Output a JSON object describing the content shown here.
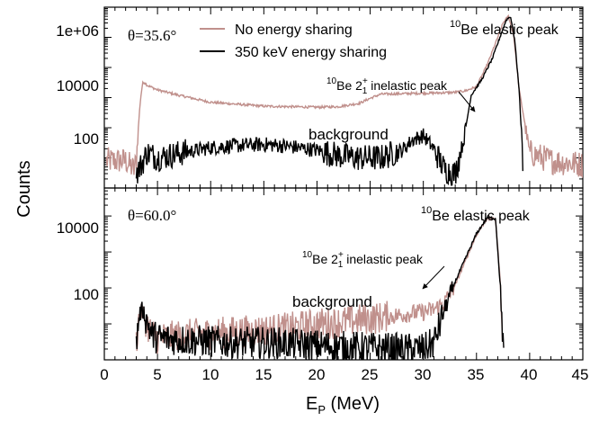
{
  "figure": {
    "ylabel": "Counts",
    "xlabel_main": "E",
    "xlabel_sub": "P",
    "xlabel_unit": " (MeV)"
  },
  "chart_data": [
    {
      "type": "line",
      "panel": "top",
      "angle_label": "θ=35.6°",
      "xlim": [
        0,
        45
      ],
      "ylim": [
        1,
        1000000
      ],
      "yscale": "log",
      "yticks": [
        100,
        10000,
        1000000
      ],
      "ytick_labels": [
        "100",
        "10000",
        "1e+06"
      ],
      "xticks": [
        0,
        5,
        10,
        15,
        20,
        25,
        30,
        35,
        40,
        45
      ],
      "xtick_labels": [],
      "legend": {
        "placement": "top-left",
        "entries": [
          "No energy sharing",
          "350 keV energy sharing"
        ]
      },
      "annotations": [
        {
          "text": "Be elastic peak",
          "super": "10",
          "x": 38.0
        },
        {
          "text": "Be 2",
          "super": "10",
          "state_sup": "+",
          "state_sub": "1",
          "tail": " inelastic peak",
          "x": 34.5
        },
        {
          "text": "background",
          "x": 23
        }
      ],
      "series": [
        {
          "name": "No energy sharing",
          "color": "#c0908c",
          "x": [
            0.2,
            2.0,
            2.8,
            3.0,
            3.2,
            3.4,
            3.6,
            3.8,
            4.0,
            5,
            7,
            10,
            15,
            20,
            22,
            24,
            25,
            26,
            28,
            30,
            32,
            33,
            34,
            35,
            36,
            37,
            37.5,
            38.0,
            38.5,
            39.0,
            40,
            42,
            45
          ],
          "y": [
            8,
            8,
            4,
            8,
            100,
            900,
            3000,
            3200,
            2600,
            1800,
            1200,
            700,
            520,
            480,
            500,
            650,
            950,
            1300,
            1350,
            1400,
            1450,
            1500,
            1700,
            2300,
            12000,
            100000,
            300000,
            500000,
            120000,
            2000,
            15,
            8,
            6
          ]
        },
        {
          "name": "350 keV energy sharing",
          "color": "#000000",
          "x": [
            3.0,
            3.5,
            4.0,
            5,
            7,
            10,
            12,
            15,
            17,
            20,
            22,
            24,
            26,
            28,
            29,
            30,
            31,
            32,
            33,
            33.8,
            34.5,
            35.5,
            36.5,
            37.2,
            37.8,
            38.2,
            38.6,
            39.0,
            39.4
          ],
          "y": [
            3,
            6,
            15,
            10,
            14,
            22,
            25,
            28,
            25,
            18,
            12,
            10,
            10,
            18,
            40,
            55,
            20,
            4,
            3,
            40,
            1200,
            4000,
            20000,
            100000,
            380000,
            500000,
            80000,
            2000,
            5
          ]
        }
      ]
    },
    {
      "type": "line",
      "panel": "bottom",
      "angle_label": "θ=60.0°",
      "xlim": [
        0,
        45
      ],
      "ylim": [
        1,
        60000
      ],
      "yscale": "log",
      "yticks": [
        100,
        10000
      ],
      "ytick_labels": [
        "100",
        "10000"
      ],
      "xticks": [
        0,
        5,
        10,
        15,
        20,
        25,
        30,
        35,
        40,
        45
      ],
      "xtick_labels": [
        "0",
        "5",
        "10",
        "15",
        "20",
        "25",
        "30",
        "35",
        "40",
        "45"
      ],
      "annotations": [
        {
          "text": "Be elastic peak",
          "super": "10",
          "x": 36
        },
        {
          "text": "Be 2",
          "super": "10",
          "state_sup": "+",
          "state_sub": "1",
          "tail": " inelastic peak",
          "x": 33
        },
        {
          "text": "background",
          "x": 23
        }
      ],
      "series": [
        {
          "name": "No energy sharing",
          "color": "#c0908c",
          "x": [
            3.0,
            3.3,
            3.6,
            4.0,
            4.5,
            5,
            8,
            12,
            16,
            18,
            20,
            22,
            24,
            26,
            28,
            29,
            30,
            31,
            32,
            33,
            34,
            35,
            36,
            36.8,
            37.2,
            37.6
          ],
          "y": [
            3,
            18,
            22,
            10,
            5,
            4,
            5,
            6,
            7,
            8,
            10,
            11,
            13,
            15,
            18,
            20,
            21,
            25,
            40,
            120,
            600,
            3000,
            8500,
            8000,
            200,
            1
          ]
        },
        {
          "name": "350 keV energy sharing",
          "color": "#000000",
          "x": [
            3.0,
            3.3,
            3.6,
            4.0,
            4.5,
            5,
            8,
            12,
            16,
            20,
            24,
            28,
            30,
            31,
            32,
            33,
            34,
            35,
            36,
            36.8,
            37.2,
            37.6
          ],
          "y": [
            3,
            18,
            25,
            12,
            5,
            4,
            3.5,
            3,
            3,
            2.5,
            2.2,
            2,
            2,
            3,
            25,
            150,
            700,
            3200,
            9000,
            8500,
            150,
            1
          ]
        }
      ]
    }
  ]
}
